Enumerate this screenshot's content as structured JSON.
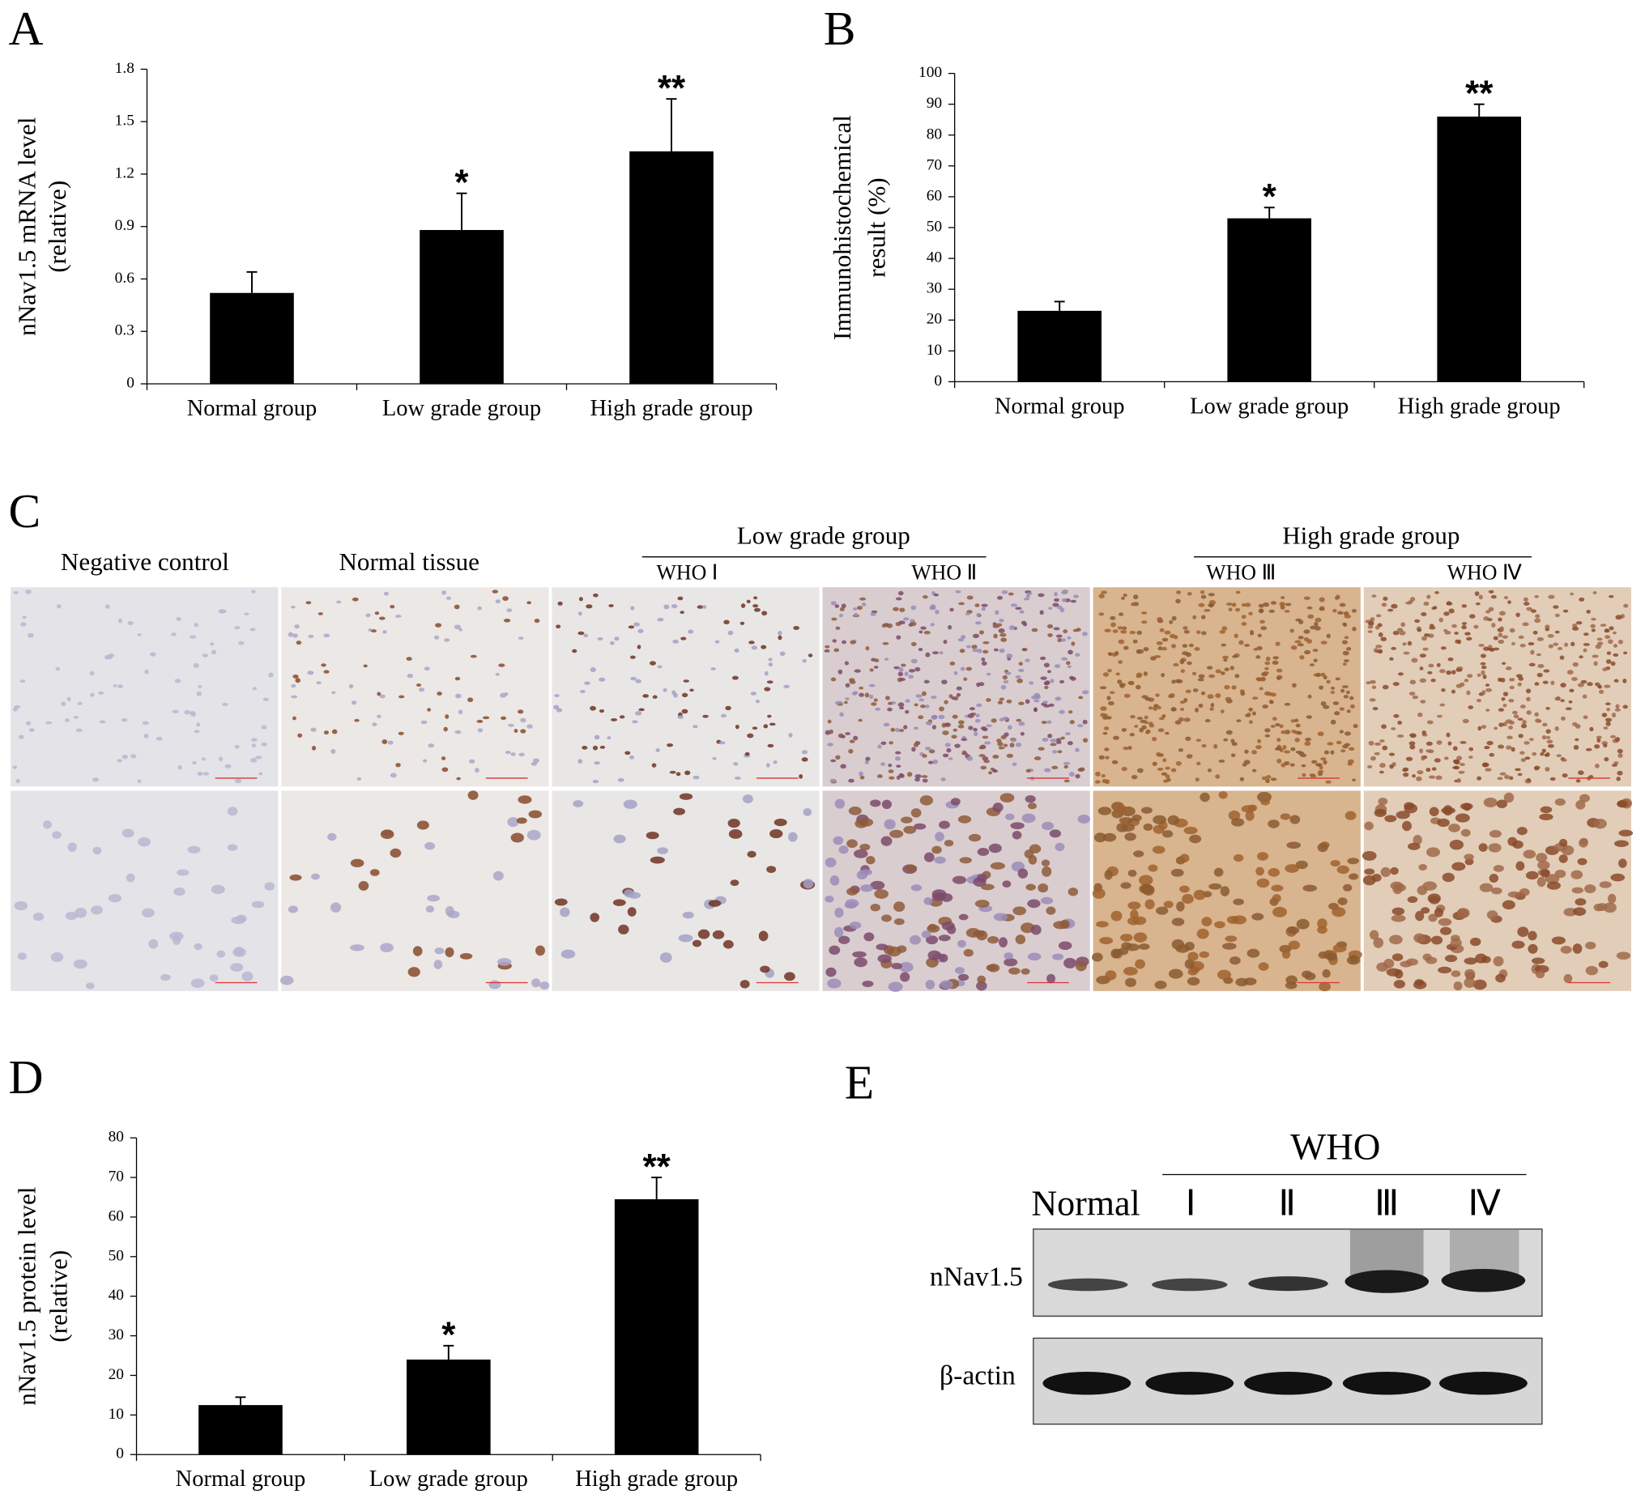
{
  "chart_data": [
    {
      "type": "bar",
      "panel": "A",
      "ylabel": [
        "nNav1.5 mRNA level",
        "(relative)"
      ],
      "categories": [
        "Normal group",
        "Low grade group",
        "High grade group"
      ],
      "values": [
        0.52,
        0.88,
        1.33
      ],
      "errors": [
        0.12,
        0.21,
        0.3
      ],
      "significance": [
        null,
        "*",
        "**"
      ],
      "color": "#000000",
      "ylim": [
        0,
        1.8
      ],
      "yticks": [
        0,
        0.3,
        0.6,
        0.9,
        1.2,
        1.5,
        1.8
      ]
    },
    {
      "type": "bar",
      "panel": "B",
      "ylabel": [
        "Immunohistochemical",
        "result (%)"
      ],
      "categories": [
        "Normal group",
        "Low grade group",
        "High grade group"
      ],
      "values": [
        23,
        53,
        86
      ],
      "errors": [
        3,
        3.5,
        4
      ],
      "significance": [
        null,
        "*",
        "**"
      ],
      "color": "#000000",
      "ylim": [
        0,
        100
      ],
      "yticks": [
        0,
        10,
        20,
        30,
        40,
        50,
        60,
        70,
        80,
        90,
        100
      ]
    },
    {
      "type": "bar",
      "panel": "D",
      "ylabel": [
        "nNav1.5 protein level",
        "(relative)"
      ],
      "categories": [
        "Normal group",
        "Low grade group",
        "High grade group"
      ],
      "values": [
        12.5,
        24,
        64.5
      ],
      "errors": [
        2,
        3.5,
        5.5
      ],
      "significance": [
        null,
        "*",
        "**"
      ],
      "color": "#000000",
      "ylim": [
        0,
        80
      ],
      "yticks": [
        0,
        10,
        20,
        30,
        40,
        50,
        60,
        70,
        80
      ]
    }
  ],
  "panel_c": {
    "label": "C",
    "columns": [
      "Negative control",
      "Normal tissue"
    ],
    "groups": [
      {
        "title": "Low grade group",
        "subs": [
          "WHO Ⅰ",
          "WHO Ⅱ"
        ]
      },
      {
        "title": "High grade group",
        "subs": [
          "WHO Ⅲ",
          "WHO Ⅳ"
        ]
      }
    ]
  },
  "panel_e": {
    "label": "E",
    "header": "WHO",
    "lanes": [
      "Normal",
      "Ⅰ",
      "Ⅱ",
      "Ⅲ",
      "Ⅳ"
    ],
    "rows": [
      "nNav1.5",
      "β-actin"
    ]
  }
}
